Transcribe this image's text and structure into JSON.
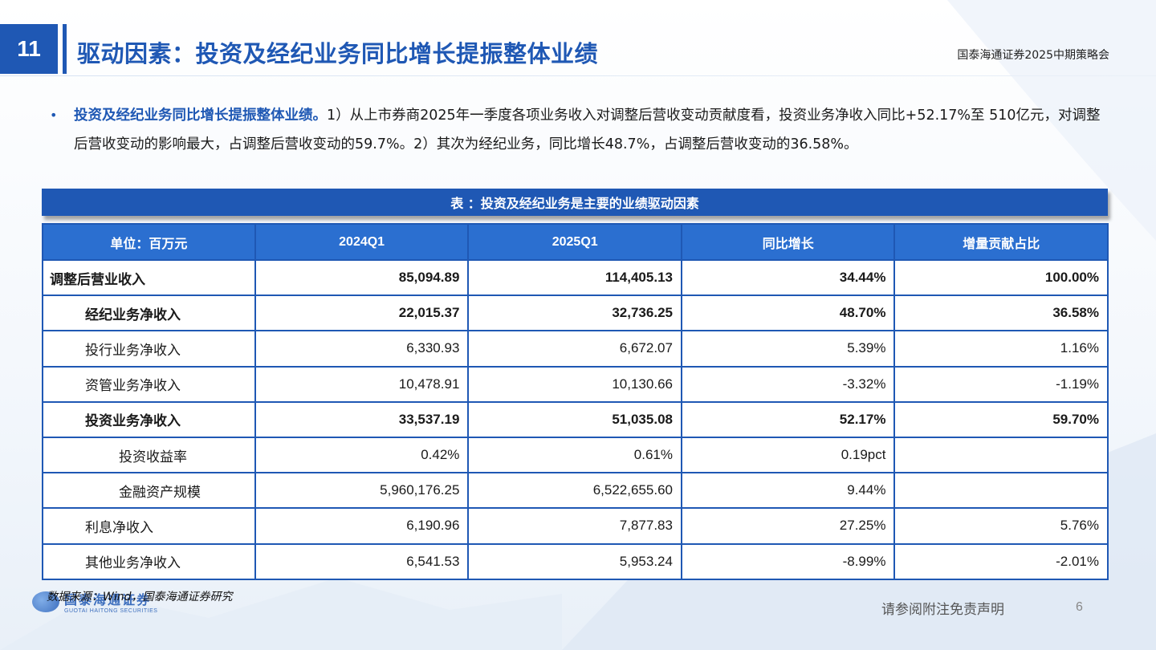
{
  "header": {
    "page_badge": "11",
    "title": "驱动因素：投资及经纪业务同比增长提振整体业绩",
    "event": "国泰海通证券2025中期策略会"
  },
  "bullet": {
    "lead": "投资及经纪业务同比增长提振整体业绩。",
    "body": "1）从上市券商2025年一季度各项业务收入对调整后营收变动贡献度看，投资业务净收入同比+52.17%至 510亿元，对调整后营收变动的影响最大，占调整后营收变动的59.7%。2）其次为经纪业务，同比增长48.7%，占调整后营收变动的36.58%。"
  },
  "table": {
    "caption": "表 ：投资及经纪业务是主要的业绩驱动因素",
    "headers": [
      "单位：百万元",
      "2024Q1",
      "2025Q1",
      "同比增长",
      "增量贡献占比"
    ],
    "rows": [
      {
        "label": "调整后营业收入",
        "v2024": "85,094.89",
        "v2025": "114,405.13",
        "yoy": "34.44%",
        "share": "100.00%"
      },
      {
        "label": "经纪业务净收入",
        "v2024": "22,015.37",
        "v2025": "32,736.25",
        "yoy": "48.70%",
        "share": "36.58%"
      },
      {
        "label": "投行业务净收入",
        "v2024": "6,330.93",
        "v2025": "6,672.07",
        "yoy": "5.39%",
        "share": "1.16%"
      },
      {
        "label": "资管业务净收入",
        "v2024": "10,478.91",
        "v2025": "10,130.66",
        "yoy": "-3.32%",
        "share": "-1.19%"
      },
      {
        "label": "投资业务净收入",
        "v2024": "33,537.19",
        "v2025": "51,035.08",
        "yoy": "52.17%",
        "share": "59.70%"
      },
      {
        "label": "投资收益率",
        "v2024": "0.42%",
        "v2025": "0.61%",
        "yoy": "0.19pct",
        "share": ""
      },
      {
        "label": "金融资产规模",
        "v2024": "5,960,176.25",
        "v2025": "6,522,655.60",
        "yoy": "9.44%",
        "share": ""
      },
      {
        "label": "利息净收入",
        "v2024": "6,190.96",
        "v2025": "7,877.83",
        "yoy": "27.25%",
        "share": "5.76%"
      },
      {
        "label": "其他业务净收入",
        "v2024": "6,541.53",
        "v2025": "5,953.24",
        "yoy": "-8.99%",
        "share": "-2.01%"
      }
    ]
  },
  "footer": {
    "source": "数据来源：Wind，国泰海通证券研究",
    "logo_cn": "国泰海通证券",
    "logo_en": "GUOTAI HAITONG SECURITIES",
    "disclaimer": "请参阅附注免责声明",
    "page_number": "6"
  },
  "colors": {
    "brand_blue": "#1f58b4",
    "header_blue": "#2b6fd0"
  }
}
